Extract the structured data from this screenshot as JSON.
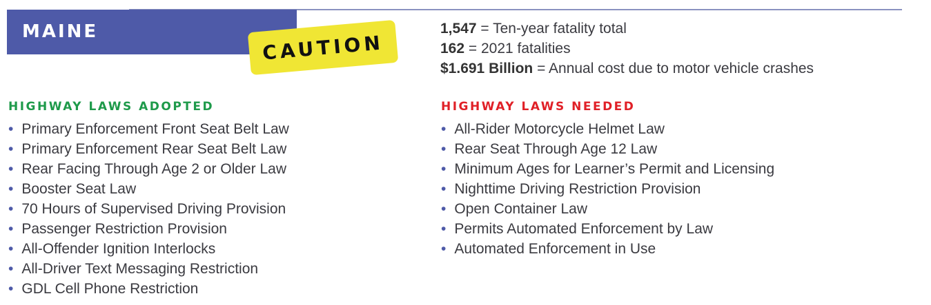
{
  "state": "MAINE",
  "badge": "CAUTION",
  "colors": {
    "state_bg": "#4e5aa8",
    "badge_bg": "#f0e634",
    "adopted": "#1e9a4a",
    "needed": "#e02027"
  },
  "stats": [
    {
      "value": "1,547",
      "label": "= Ten-year fatality total"
    },
    {
      "value": "162",
      "label": "= 2021 fatalities"
    },
    {
      "value": "$1.691 Billion",
      "label": "= Annual cost due to motor vehicle crashes"
    }
  ],
  "adopted": {
    "title": "HIGHWAY LAWS ADOPTED",
    "items": [
      "Primary Enforcement Front Seat Belt Law",
      "Primary Enforcement Rear Seat Belt Law",
      "Rear Facing Through Age 2 or Older Law",
      "Booster Seat Law",
      "70 Hours of Supervised Driving Provision",
      "Passenger Restriction Provision",
      "All-Offender Ignition Interlocks",
      "All-Driver Text Messaging Restriction",
      "GDL Cell Phone Restriction"
    ]
  },
  "needed": {
    "title": "HIGHWAY LAWS NEEDED",
    "items": [
      "All-Rider Motorcycle Helmet Law",
      "Rear Seat Through Age 12 Law",
      "Minimum Ages for Learner’s Permit and Licensing",
      "Nighttime Driving Restriction Provision",
      "Open Container Law",
      "Permits Automated Enforcement by Law",
      "Automated Enforcement in Use"
    ]
  }
}
